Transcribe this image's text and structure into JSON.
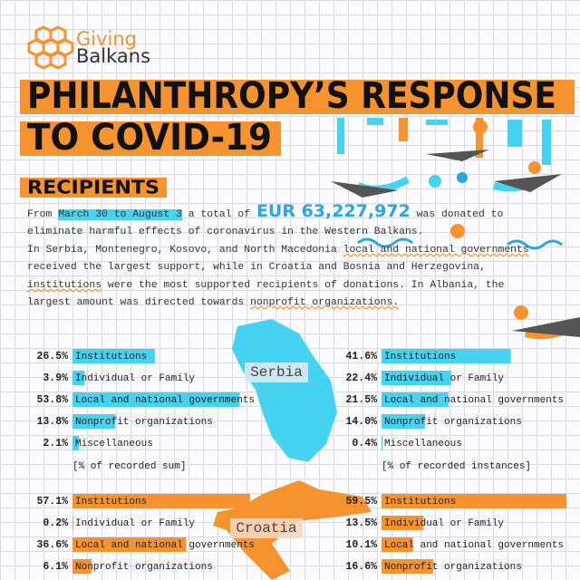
{
  "header": {
    "logo_line1": "Giving",
    "logo_line2": "Balkans",
    "title_line1": "PHILANTHROPY’S RESPONSE",
    "title_line2": "TO COVID-19",
    "section": "RECIPIENTS"
  },
  "intro": [
    "From ",
    "March 30 to August 3",
    " a total of ",
    "EUR 63,227,972",
    " was donated to",
    "eliminate harmful effects of coronavirus in the Western Balkans.",
    "In Serbia, Montenegro, Kosovo, and North Macedonia ",
    "local and national governments",
    "received the largest support, while in Croatia and Bosnia and Herzegovina,",
    "institutions",
    " were the most supported recipients of donations. In Albania, the",
    "largest amount was directed towards ",
    "nonprofit organizations."
  ],
  "countries": [
    {
      "name": "Serbia",
      "panels": [
        {
          "categories": [
            "Institutions",
            "Individual or Family",
            "Local and national governments",
            "Nonprofit organizations",
            "Miscellaneous"
          ],
          "values": [
            26.5,
            3.9,
            53.8,
            13.8,
            2.1
          ],
          "value_labels": [
            "26.5%",
            "3.9%",
            "53.8%",
            "13.8%",
            "2.1%"
          ],
          "note": "[% of recorded sum]",
          "color": "#46d3f2"
        },
        {
          "categories": [
            "Institutions",
            "Individual or Family",
            "Local and national governments",
            "Nonprofit organizations",
            "Miscellaneous"
          ],
          "values": [
            41.6,
            22.4,
            21.5,
            14.0,
            0.4
          ],
          "value_labels": [
            "41.6%",
            "22.4%",
            "21.5%",
            "14.0%",
            "0.4%"
          ],
          "note": "[% of recorded instances]",
          "color": "#46d3f2"
        }
      ]
    },
    {
      "name": "Croatia",
      "panels": [
        {
          "categories": [
            "Institutions",
            "Individual or Family",
            "Local and national governments",
            "Nonprofit organizations"
          ],
          "values": [
            57.1,
            0.2,
            36.6,
            6.1
          ],
          "value_labels": [
            "57.1%",
            "0.2%",
            "36.6%",
            "6.1%"
          ],
          "color": "#f7932f"
        },
        {
          "categories": [
            "Institutions",
            "Individual or Family",
            "Local and national governments",
            "Nonprofit organizations"
          ],
          "values": [
            59.5,
            13.5,
            10.1,
            16.6
          ],
          "value_labels": [
            "59.5%",
            "13.5%",
            "10.1%",
            "16.6%"
          ],
          "color": "#f7932f"
        }
      ]
    }
  ]
}
